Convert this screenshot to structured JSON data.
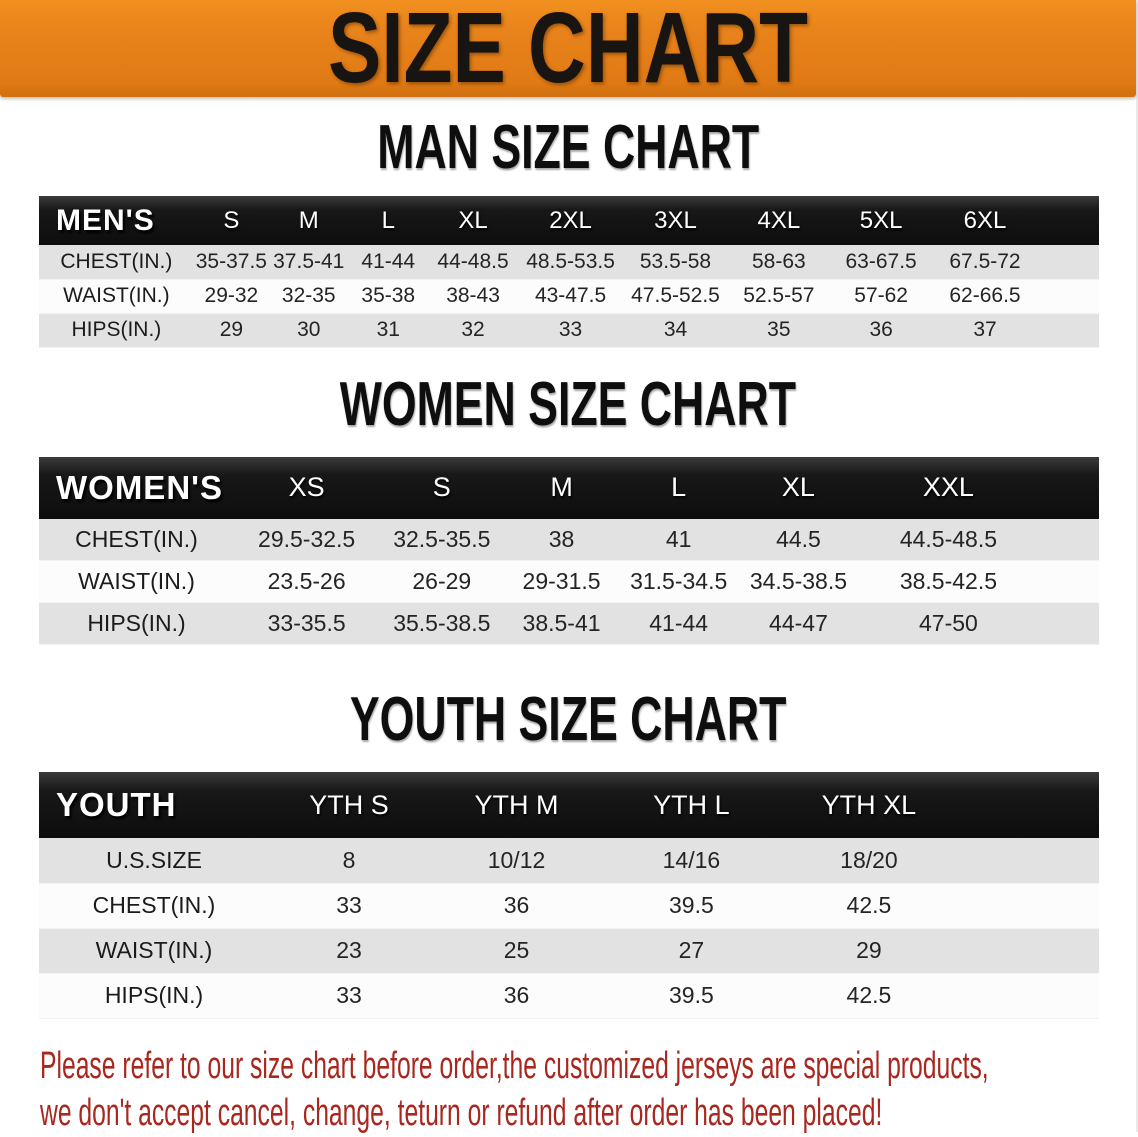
{
  "banner": {
    "title": "SIZE CHART"
  },
  "sections": [
    {
      "title": "MAN SIZE CHART",
      "header_label": "MEN'S",
      "columns": [
        "S",
        "M",
        "L",
        "XL",
        "2XL",
        "3XL",
        "4XL",
        "5XL",
        "6XL"
      ],
      "rows": [
        {
          "label": "CHEST(IN.)",
          "values": [
            "35-37.5",
            "37.5-41",
            "41-44",
            "44-48.5",
            "48.5-53.5",
            "53.5-58",
            "58-63",
            "63-67.5",
            "67.5-72"
          ]
        },
        {
          "label": "WAIST(IN.)",
          "values": [
            "29-32",
            "32-35",
            "35-38",
            "38-43",
            "43-47.5",
            "47.5-52.5",
            "52.5-57",
            "57-62",
            "62-66.5"
          ]
        },
        {
          "label": "HIPS(IN.)",
          "values": [
            "29",
            "30",
            "31",
            "32",
            "33",
            "34",
            "35",
            "36",
            "37"
          ]
        }
      ]
    },
    {
      "title": "WOMEN SIZE CHART",
      "header_label": "WOMEN'S",
      "columns": [
        "XS",
        "S",
        "M",
        "L",
        "XL",
        "XXL"
      ],
      "rows": [
        {
          "label": "CHEST(IN.)",
          "values": [
            "29.5-32.5",
            "32.5-35.5",
            "38",
            "41",
            "44.5",
            "44.5-48.5"
          ]
        },
        {
          "label": "WAIST(IN.)",
          "values": [
            "23.5-26",
            "26-29",
            "29-31.5",
            "31.5-34.5",
            "34.5-38.5",
            "38.5-42.5"
          ]
        },
        {
          "label": "HIPS(IN.)",
          "values": [
            "33-35.5",
            "35.5-38.5",
            "38.5-41",
            "41-44",
            "44-47",
            "47-50"
          ]
        }
      ]
    },
    {
      "title": "YOUTH SIZE CHART",
      "header_label": "YOUTH",
      "columns": [
        "YTH S",
        "YTH M",
        "YTH L",
        "YTH XL"
      ],
      "rows": [
        {
          "label": "U.S.SIZE",
          "values": [
            "8",
            "10/12",
            "14/16",
            "18/20"
          ]
        },
        {
          "label": "CHEST(IN.)",
          "values": [
            "33",
            "36",
            "39.5",
            "42.5"
          ]
        },
        {
          "label": "WAIST(IN.)",
          "values": [
            "23",
            "25",
            "27",
            "29"
          ]
        },
        {
          "label": "HIPS(IN.)",
          "values": [
            "33",
            "36",
            "39.5",
            "42.5"
          ]
        }
      ]
    }
  ],
  "footer": {
    "line1": "Please refer to our size chart before order,the customized jerseys are special products,",
    "line2": "we don't accept cancel, change, teturn or refund after order has been placed!"
  },
  "colors": {
    "banner_bg": "#e8821b",
    "banner_text": "#181411",
    "table_header_bg": "#141414",
    "table_header_text": "#ffffff",
    "row_shaded": "#e2e2e2",
    "row_plain": "#fcfcfc",
    "body_text": "#242424",
    "disclaimer_text": "#a8271f"
  }
}
